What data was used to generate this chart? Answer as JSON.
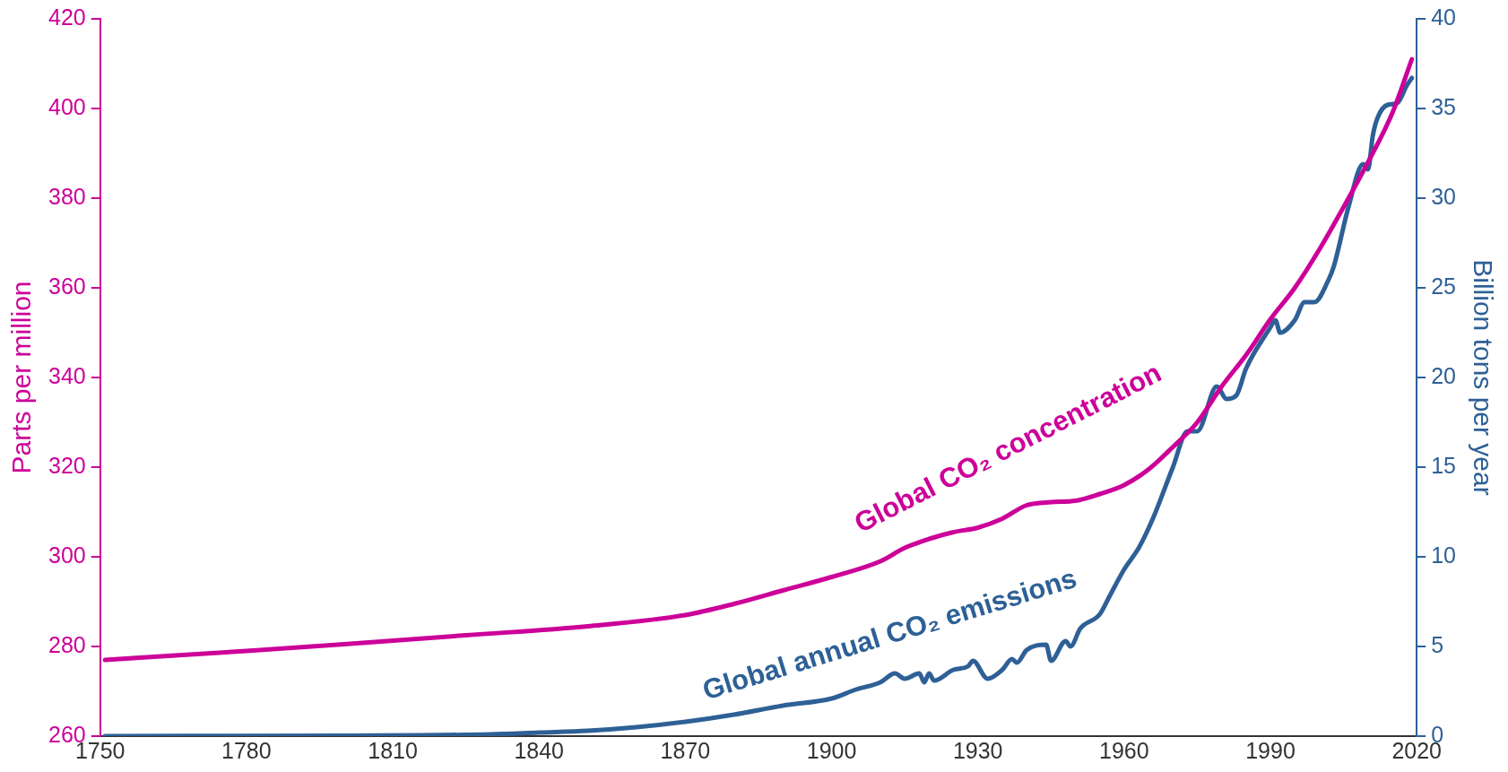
{
  "chart_data": {
    "type": "line",
    "ylabel": "Parts per million",
    "y2label": "Billion tons per year",
    "xlim": [
      1750,
      2020
    ],
    "xticks": [
      1750,
      1780,
      1810,
      1840,
      1870,
      1900,
      1930,
      1960,
      1990,
      2020
    ],
    "ylim": [
      260,
      420
    ],
    "yticks": [
      260,
      280,
      300,
      320,
      340,
      360,
      380,
      400,
      420
    ],
    "y2lim": [
      0,
      40
    ],
    "y2ticks": [
      0,
      5,
      10,
      15,
      20,
      25,
      30,
      35,
      40
    ],
    "grid": false,
    "legend": false,
    "marker": "none",
    "line_style": "solid",
    "series": [
      {
        "name": "Global CO₂ concentration",
        "color": "#cc0099",
        "axis": "y",
        "x": [
          1751,
          1780,
          1800,
          1825,
          1850,
          1870,
          1880,
          1890,
          1900,
          1910,
          1915,
          1920,
          1925,
          1930,
          1935,
          1940,
          1945,
          1950,
          1955,
          1960,
          1965,
          1970,
          1975,
          1980,
          1985,
          1990,
          1995,
          2000,
          2005,
          2010,
          2015,
          2019
        ],
        "values": [
          277,
          279,
          280.5,
          282.5,
          284.5,
          287,
          289.5,
          292.5,
          295.5,
          299,
          302,
          304,
          305.5,
          306.5,
          308.5,
          311.5,
          312.2,
          312.5,
          314,
          316,
          319.5,
          324.5,
          330,
          338,
          345,
          353,
          360,
          368.5,
          378,
          388,
          399,
          411
        ]
      },
      {
        "name": "Global annual CO₂ emissions",
        "color": "#2e6096",
        "axis": "y2",
        "x": [
          1751,
          1800,
          1830,
          1840,
          1850,
          1860,
          1870,
          1880,
          1890,
          1900,
          1905,
          1910,
          1913,
          1915,
          1918,
          1919,
          1920,
          1921,
          1925,
          1928,
          1929,
          1932,
          1935,
          1937,
          1938,
          1940,
          1944,
          1945,
          1948,
          1949,
          1951,
          1955,
          1957,
          1960,
          1963,
          1966,
          1970,
          1973,
          1975,
          1979,
          1981,
          1983,
          1985,
          1990,
          1991,
          1992,
          1995,
          1997,
          1999,
          2002,
          2003,
          2006,
          2009,
          2010,
          2011,
          2012,
          2014,
          2016,
          2018,
          2019
        ],
        "values": [
          0,
          0.03,
          0.1,
          0.2,
          0.3,
          0.5,
          0.8,
          1.2,
          1.7,
          2.1,
          2.6,
          3.0,
          3.5,
          3.2,
          3.5,
          3.0,
          3.5,
          3.1,
          3.7,
          3.9,
          4.2,
          3.2,
          3.7,
          4.3,
          4.1,
          4.8,
          5.1,
          4.2,
          5.3,
          5.0,
          6.0,
          6.8,
          7.8,
          9.3,
          10.5,
          12.2,
          15,
          17,
          17,
          19.5,
          18.8,
          19.0,
          20.5,
          22.8,
          23.2,
          22.5,
          23.2,
          24.2,
          24.2,
          25.5,
          26.2,
          29.5,
          31.9,
          31.6,
          33.5,
          34.5,
          35.2,
          35.3,
          36.3,
          36.7
        ]
      }
    ]
  }
}
